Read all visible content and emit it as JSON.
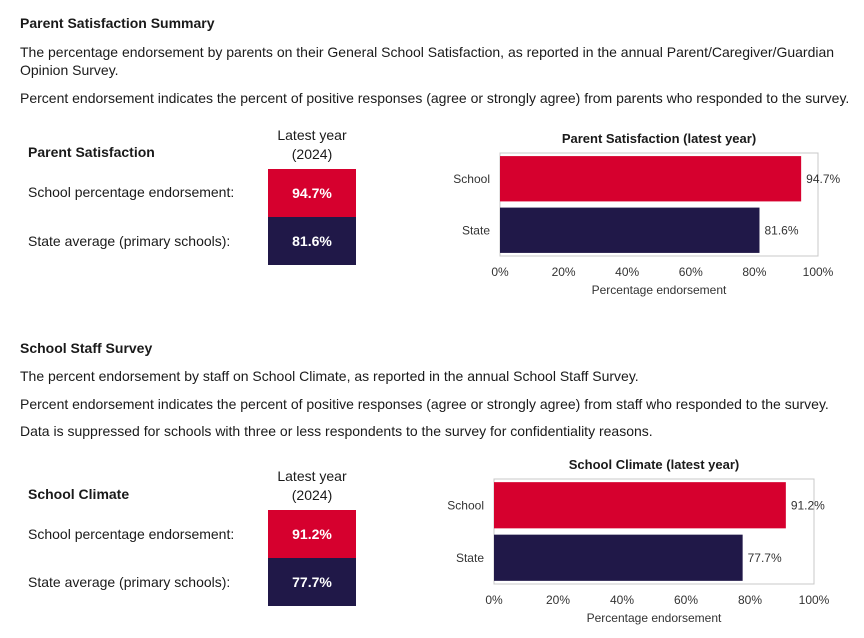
{
  "colors": {
    "school": "#d6002e",
    "state": "#201848"
  },
  "parent": {
    "heading": "Parent Satisfaction Summary",
    "para1": "The percentage endorsement by parents on their General School Satisfaction, as reported in the annual Parent/Caregiver/Guardian Opinion Survey.",
    "para2": "Percent endorsement indicates the percent of positive responses (agree or strongly agree) from parents who responded to the survey.",
    "table": {
      "title": "Parent Satisfaction",
      "col_head_1": "Latest year",
      "col_head_2": "(2024)",
      "row1_label": "School percentage endorsement:",
      "row1_value": "94.7%",
      "row2_label": "State average (primary schools):",
      "row2_value": "81.6%"
    }
  },
  "staff": {
    "heading": "School Staff Survey",
    "para1": "The percent endorsement by staff on School Climate, as reported in the annual School Staff Survey.",
    "para2": "Percent endorsement indicates the percent of positive responses (agree or strongly agree) from staff who responded to the survey.",
    "para3": "Data is suppressed for schools with three or less respondents to the survey for confidentiality reasons.",
    "table": {
      "title": "School Climate",
      "col_head_1": "Latest year",
      "col_head_2": "(2024)",
      "row1_label": "School percentage endorsement:",
      "row1_value": "91.2%",
      "row2_label": "State average (primary schools):",
      "row2_value": "77.7%"
    }
  },
  "chart_data": [
    {
      "type": "bar",
      "orientation": "horizontal",
      "title": "Parent Satisfaction (latest year)",
      "xlabel": "Percentage endorsement",
      "ylabel": "",
      "categories": [
        "School",
        "State"
      ],
      "values": [
        94.7,
        81.6
      ],
      "value_labels": [
        "94.7%",
        "81.6%"
      ],
      "xlim": [
        0,
        100
      ],
      "ticks": [
        "0%",
        "20%",
        "40%",
        "60%",
        "80%",
        "100%"
      ]
    },
    {
      "type": "bar",
      "orientation": "horizontal",
      "title": "School Climate (latest year)",
      "xlabel": "Percentage endorsement",
      "ylabel": "",
      "categories": [
        "School",
        "State"
      ],
      "values": [
        91.2,
        77.7
      ],
      "value_labels": [
        "91.2%",
        "77.7%"
      ],
      "xlim": [
        0,
        100
      ],
      "ticks": [
        "0%",
        "20%",
        "40%",
        "60%",
        "80%",
        "100%"
      ]
    }
  ]
}
